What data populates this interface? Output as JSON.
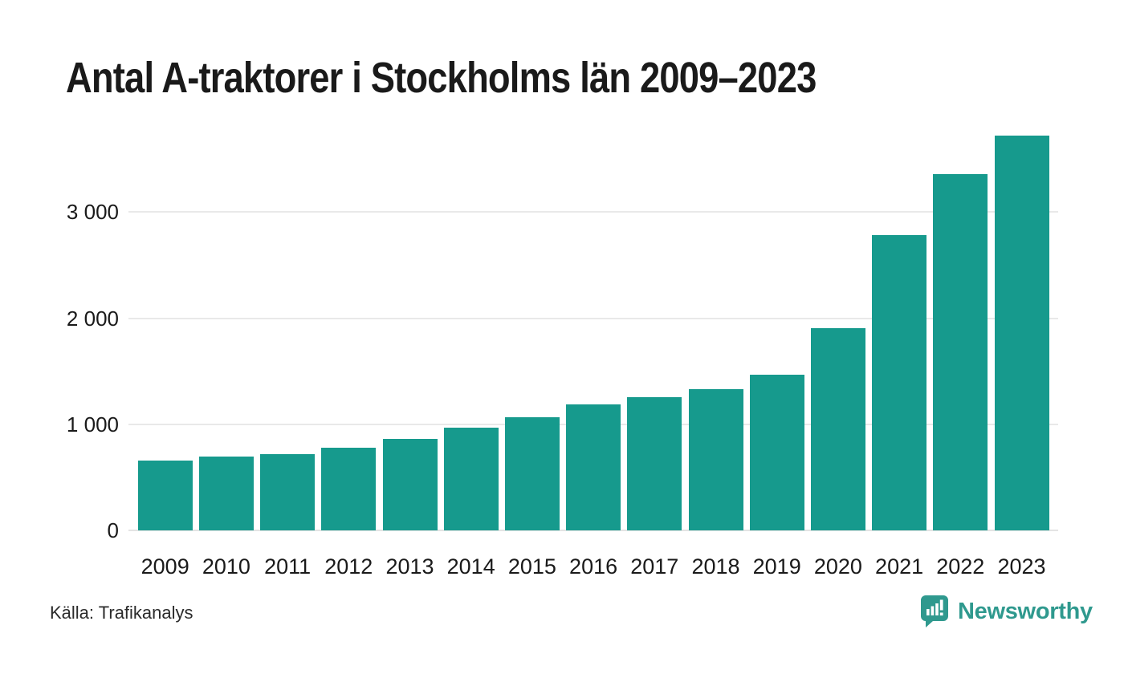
{
  "title": "Antal A-traktorer i Stockholms län 2009–2023",
  "footer": {
    "source": "Källa: Trafikanalys",
    "logo_text": "Newsworthy"
  },
  "colors": {
    "bar": "#169a8d",
    "grid": "#e9e9e9",
    "text": "#1a1a1a",
    "logo": "#2f998e"
  },
  "chart_data": {
    "type": "bar",
    "title": "Antal A-traktorer i Stockholms län 2009–2023",
    "categories": [
      "2009",
      "2010",
      "2011",
      "2012",
      "2013",
      "2014",
      "2015",
      "2016",
      "2017",
      "2018",
      "2019",
      "2020",
      "2021",
      "2022",
      "2023"
    ],
    "values": [
      655,
      695,
      715,
      780,
      865,
      965,
      1070,
      1190,
      1255,
      1330,
      1470,
      1905,
      2780,
      3360,
      3725
    ],
    "xlabel": "",
    "ylabel": "",
    "ylim": [
      0,
      3770
    ],
    "yticks": [
      {
        "value": 0,
        "label": "0"
      },
      {
        "value": 1000,
        "label": "1 000"
      },
      {
        "value": 2000,
        "label": "2 000"
      },
      {
        "value": 3000,
        "label": "3 000"
      }
    ],
    "grid": "horizontal",
    "legend": "none",
    "bar_color": "#169a8d",
    "source": "Källa: Trafikanalys"
  }
}
